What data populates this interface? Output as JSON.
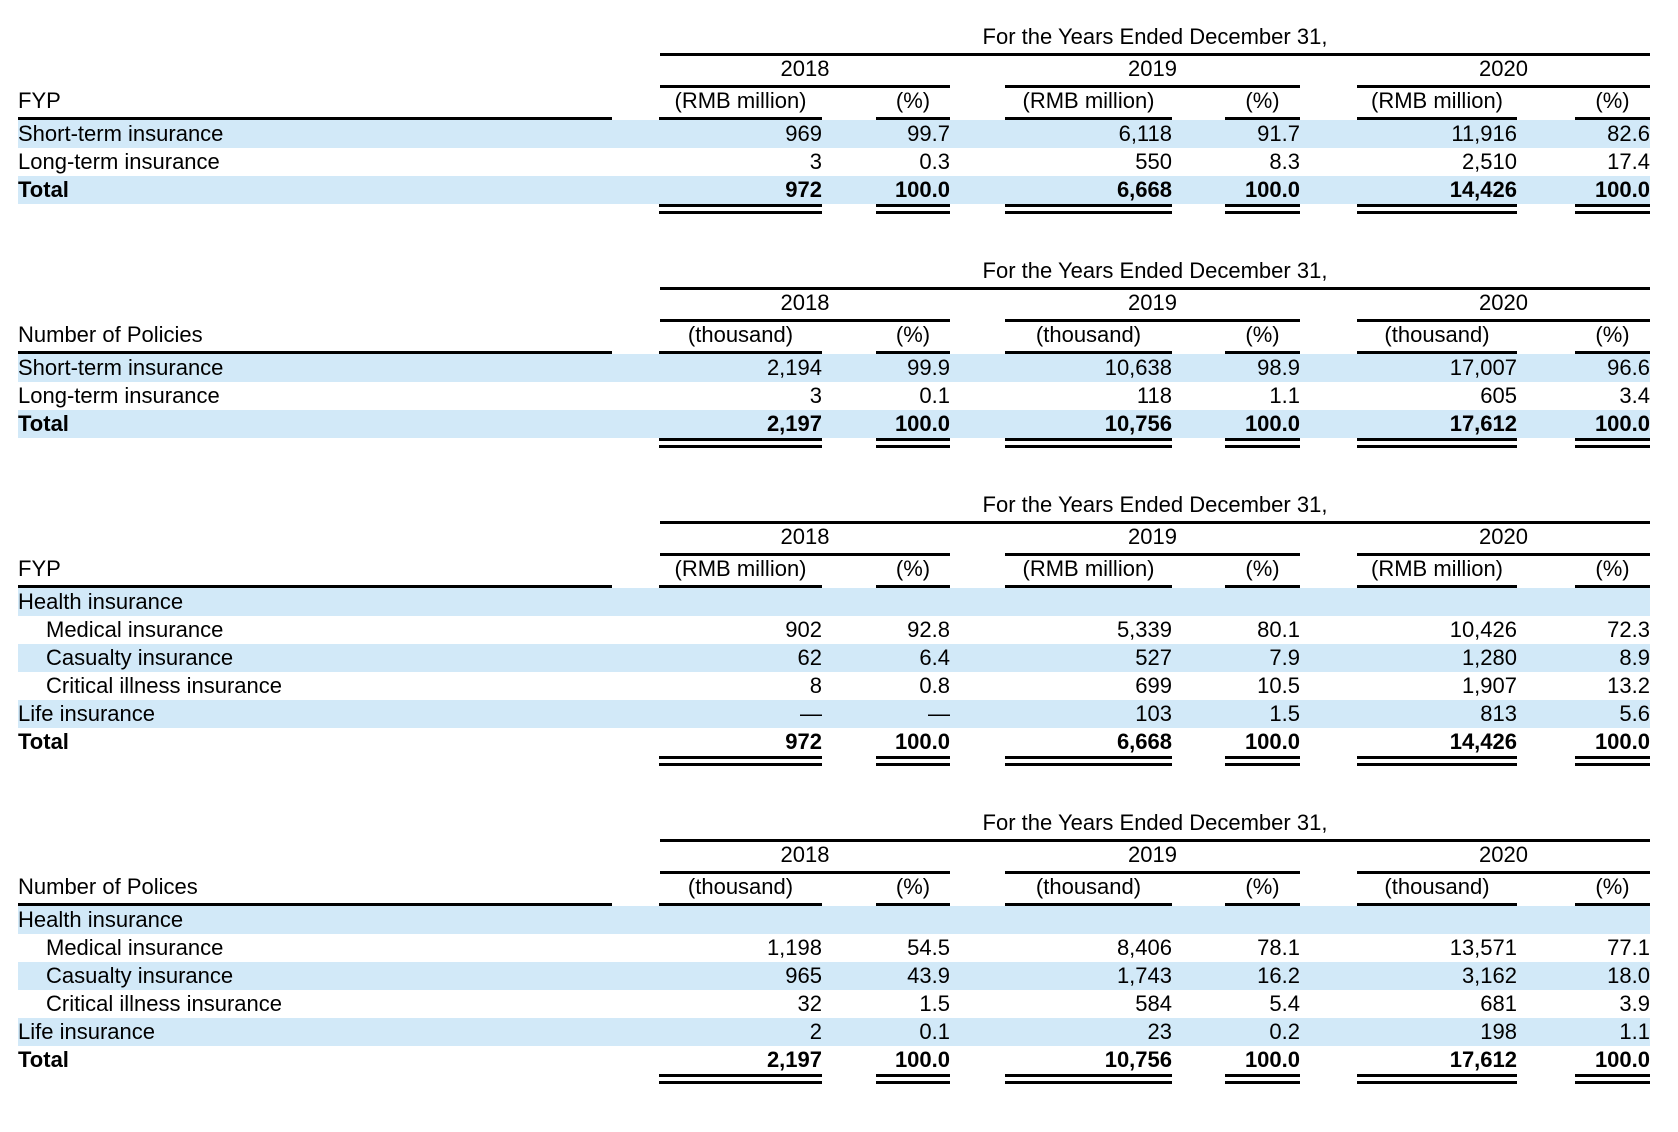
{
  "colors": {
    "row_highlight": "#d2e9f8",
    "background": "#ffffff",
    "text": "#000000"
  },
  "tables": [
    {
      "name": "fyp-by-term",
      "period_header": "For the Years Ended December 31,",
      "row_header": "FYP",
      "year_groups": [
        {
          "year": "2018",
          "unit": "(RMB million)",
          "pct": "(%)"
        },
        {
          "year": "2019",
          "unit": "(RMB million)",
          "pct": "(%)"
        },
        {
          "year": "2020",
          "unit": "(RMB million)",
          "pct": "(%)"
        }
      ],
      "rows": [
        {
          "label": "Short-term insurance",
          "indent": false,
          "total": false,
          "highlight": true,
          "values": [
            "969",
            "99.7",
            "6,118",
            "91.7",
            "11,916",
            "82.6"
          ]
        },
        {
          "label": "Long-term insurance",
          "indent": false,
          "total": false,
          "highlight": false,
          "values": [
            "3",
            "0.3",
            "550",
            "8.3",
            "2,510",
            "17.4"
          ]
        },
        {
          "label": "Total",
          "indent": false,
          "total": true,
          "highlight": true,
          "double_underline": true,
          "values": [
            "972",
            "100.0",
            "6,668",
            "100.0",
            "14,426",
            "100.0"
          ]
        }
      ]
    },
    {
      "name": "policies-by-term",
      "period_header": "For the Years Ended December 31,",
      "row_header": "Number of Policies",
      "year_groups": [
        {
          "year": "2018",
          "unit": "(thousand)",
          "pct": "(%)"
        },
        {
          "year": "2019",
          "unit": "(thousand)",
          "pct": "(%)"
        },
        {
          "year": "2020",
          "unit": "(thousand)",
          "pct": "(%)"
        }
      ],
      "rows": [
        {
          "label": "Short-term insurance",
          "indent": false,
          "total": false,
          "highlight": true,
          "values": [
            "2,194",
            "99.9",
            "10,638",
            "98.9",
            "17,007",
            "96.6"
          ]
        },
        {
          "label": "Long-term insurance",
          "indent": false,
          "total": false,
          "highlight": false,
          "values": [
            "3",
            "0.1",
            "118",
            "1.1",
            "605",
            "3.4"
          ]
        },
        {
          "label": "Total",
          "indent": false,
          "total": true,
          "highlight": true,
          "double_underline": true,
          "values": [
            "2,197",
            "100.0",
            "10,756",
            "100.0",
            "17,612",
            "100.0"
          ]
        }
      ]
    },
    {
      "name": "fyp-by-product",
      "period_header": "For the Years Ended December 31,",
      "row_header": "FYP",
      "year_groups": [
        {
          "year": "2018",
          "unit": "(RMB million)",
          "pct": "(%)"
        },
        {
          "year": "2019",
          "unit": "(RMB million)",
          "pct": "(%)"
        },
        {
          "year": "2020",
          "unit": "(RMB million)",
          "pct": "(%)"
        }
      ],
      "rows": [
        {
          "label": "Health insurance",
          "indent": false,
          "total": false,
          "highlight": true,
          "values": []
        },
        {
          "label": "Medical insurance",
          "indent": true,
          "total": false,
          "highlight": false,
          "values": [
            "902",
            "92.8",
            "5,339",
            "80.1",
            "10,426",
            "72.3"
          ]
        },
        {
          "label": "Casualty insurance",
          "indent": true,
          "total": false,
          "highlight": true,
          "values": [
            "62",
            "6.4",
            "527",
            "7.9",
            "1,280",
            "8.9"
          ]
        },
        {
          "label": "Critical illness insurance",
          "indent": true,
          "total": false,
          "highlight": false,
          "values": [
            "8",
            "0.8",
            "699",
            "10.5",
            "1,907",
            "13.2"
          ]
        },
        {
          "label": "Life insurance",
          "indent": false,
          "total": false,
          "highlight": true,
          "values": [
            "—",
            "—",
            "103",
            "1.5",
            "813",
            "5.6"
          ]
        },
        {
          "label": "Total",
          "indent": false,
          "total": true,
          "highlight": false,
          "double_underline": true,
          "values": [
            "972",
            "100.0",
            "6,668",
            "100.0",
            "14,426",
            "100.0"
          ]
        }
      ]
    },
    {
      "name": "policies-by-product",
      "period_header": "For the Years Ended December 31,",
      "row_header": "Number of Polices",
      "year_groups": [
        {
          "year": "2018",
          "unit": "(thousand)",
          "pct": "(%)"
        },
        {
          "year": "2019",
          "unit": "(thousand)",
          "pct": "(%)"
        },
        {
          "year": "2020",
          "unit": "(thousand)",
          "pct": "(%)"
        }
      ],
      "rows": [
        {
          "label": "Health insurance",
          "indent": false,
          "total": false,
          "highlight": true,
          "values": []
        },
        {
          "label": "Medical insurance",
          "indent": true,
          "total": false,
          "highlight": false,
          "values": [
            "1,198",
            "54.5",
            "8,406",
            "78.1",
            "13,571",
            "77.1"
          ]
        },
        {
          "label": "Casualty insurance",
          "indent": true,
          "total": false,
          "highlight": true,
          "values": [
            "965",
            "43.9",
            "1,743",
            "16.2",
            "3,162",
            "18.0"
          ]
        },
        {
          "label": "Critical illness insurance",
          "indent": true,
          "total": false,
          "highlight": false,
          "values": [
            "32",
            "1.5",
            "584",
            "5.4",
            "681",
            "3.9"
          ]
        },
        {
          "label": "Life insurance",
          "indent": false,
          "total": false,
          "highlight": true,
          "values": [
            "2",
            "0.1",
            "23",
            "0.2",
            "198",
            "1.1"
          ]
        },
        {
          "label": "Total",
          "indent": false,
          "total": true,
          "highlight": false,
          "double_underline": true,
          "values": [
            "2,197",
            "100.0",
            "10,756",
            "100.0",
            "17,612",
            "100.0"
          ]
        }
      ]
    }
  ]
}
